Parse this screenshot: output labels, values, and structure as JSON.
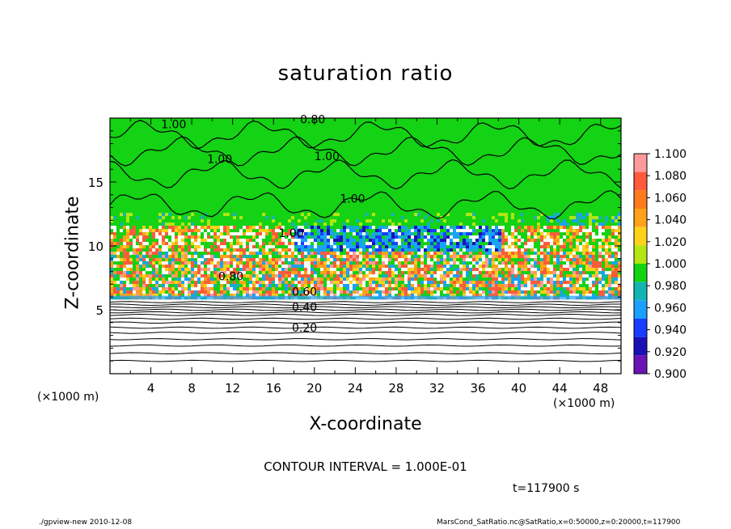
{
  "chart_data": {
    "type": "heatmap",
    "title": "saturation ratio",
    "xlabel": "X-coordinate",
    "ylabel": "Z-coordinate",
    "x_unit": "(×1000 m)",
    "z_unit": "(×1000 m)",
    "xlim": [
      0,
      50
    ],
    "zlim": [
      0,
      20
    ],
    "x_ticks": [
      "4",
      "8",
      "12",
      "16",
      "20",
      "24",
      "28",
      "32",
      "36",
      "40",
      "44",
      "48"
    ],
    "z_ticks": [
      "5",
      "10",
      "15"
    ],
    "colorbar": {
      "labels": [
        "1.100",
        "1.080",
        "1.060",
        "1.040",
        "1.020",
        "1.000",
        "0.980",
        "0.960",
        "0.940",
        "0.920",
        "0.900"
      ],
      "colors": [
        "#ff9a9a",
        "#ff5a3c",
        "#ff7a1a",
        "#ffa21a",
        "#ffd21a",
        "#b4e614",
        "#14d214",
        "#14b4b4",
        "#1aa0ff",
        "#1a3cff",
        "#1a10b4",
        "#6b14b4"
      ]
    },
    "contour_labels": [
      "1.00",
      "1.00",
      "1.00",
      "1.00",
      "1.00",
      "0.80",
      "0.80",
      "0.60",
      "0.40",
      "0.20"
    ],
    "contour_interval_text": "CONTOUR INTERVAL = 1.000E-01",
    "time_text": "t=117900 s",
    "footer_left": "./gpview-new  2010-12-08",
    "footer_right": "MarsCond_SatRatio.nc@SatRatio,x=0:50000,z=0:20000,t=117900"
  }
}
